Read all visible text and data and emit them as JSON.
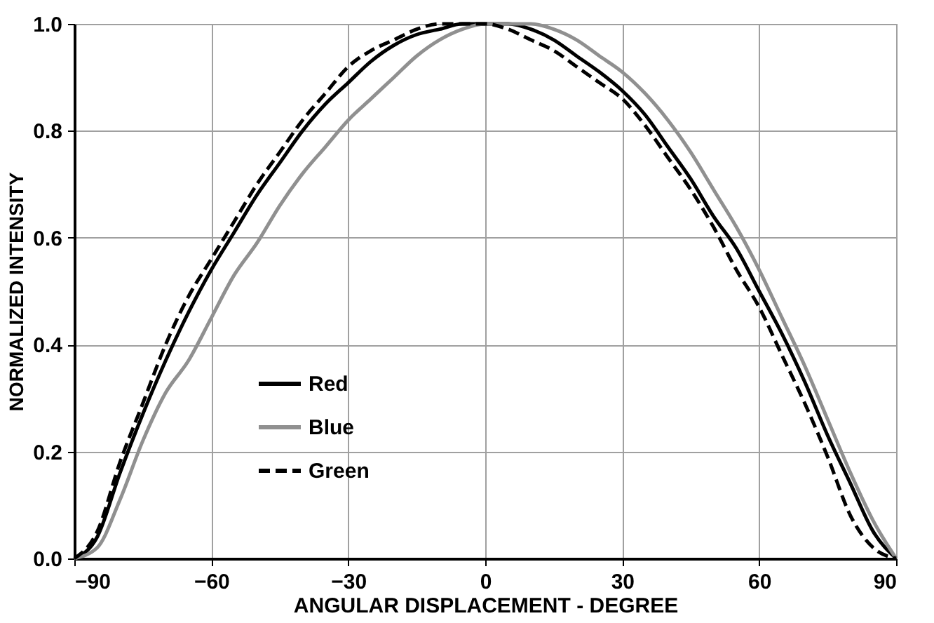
{
  "chart_data": {
    "type": "line",
    "xlabel": "ANGULAR DISPLACEMENT - DEGREE",
    "ylabel": "NORMALIZED INTENSITY",
    "x": [
      -90,
      -85,
      -80,
      -75,
      -70,
      -65,
      -60,
      -55,
      -50,
      -45,
      -40,
      -35,
      -30,
      -25,
      -20,
      -15,
      -10,
      -5,
      0,
      5,
      10,
      15,
      20,
      25,
      30,
      35,
      40,
      45,
      50,
      55,
      60,
      65,
      70,
      75,
      80,
      85,
      90
    ],
    "series": [
      {
        "name": "Red",
        "color": "#000000",
        "line_style": "solid",
        "values": [
          0,
          0.04,
          0.16,
          0.27,
          0.37,
          0.46,
          0.54,
          0.61,
          0.68,
          0.74,
          0.8,
          0.85,
          0.89,
          0.93,
          0.96,
          0.98,
          0.99,
          1.0,
          1.0,
          1.0,
          0.99,
          0.97,
          0.94,
          0.91,
          0.875,
          0.83,
          0.77,
          0.71,
          0.64,
          0.58,
          0.5,
          0.42,
          0.33,
          0.23,
          0.14,
          0.05,
          0
        ]
      },
      {
        "name": "Blue",
        "color": "#909090",
        "line_style": "solid",
        "values": [
          0,
          0.02,
          0.11,
          0.22,
          0.31,
          0.37,
          0.45,
          0.53,
          0.59,
          0.66,
          0.72,
          0.77,
          0.82,
          0.86,
          0.9,
          0.94,
          0.97,
          0.99,
          1.0,
          1.0,
          1.0,
          0.99,
          0.97,
          0.94,
          0.91,
          0.87,
          0.82,
          0.76,
          0.69,
          0.62,
          0.54,
          0.45,
          0.36,
          0.26,
          0.16,
          0.07,
          0
        ]
      },
      {
        "name": "Green",
        "color": "#000000",
        "line_style": "dashed",
        "values": [
          0,
          0.05,
          0.18,
          0.29,
          0.4,
          0.49,
          0.56,
          0.63,
          0.7,
          0.76,
          0.82,
          0.87,
          0.92,
          0.95,
          0.97,
          0.99,
          1.0,
          1.0,
          1.0,
          0.99,
          0.97,
          0.95,
          0.92,
          0.89,
          0.86,
          0.81,
          0.75,
          0.69,
          0.62,
          0.54,
          0.47,
          0.38,
          0.29,
          0.19,
          0.08,
          0.02,
          0
        ]
      }
    ],
    "xlim": [
      -90,
      90
    ],
    "xticks": [
      -90,
      -60,
      -30,
      0,
      30,
      60,
      90
    ],
    "ylim": [
      0,
      1
    ],
    "yticks": [
      {
        "value": 0,
        "label": "0.0"
      },
      {
        "value": 0.2,
        "label": "0.2"
      },
      {
        "value": 0.4,
        "label": "0.4"
      },
      {
        "value": 0.6,
        "label": "0.6"
      },
      {
        "value": 0.8,
        "label": "0.8"
      },
      {
        "value": 1,
        "label": "1.0"
      }
    ],
    "grid": true,
    "legend": "bottom",
    "marker": "none"
  }
}
